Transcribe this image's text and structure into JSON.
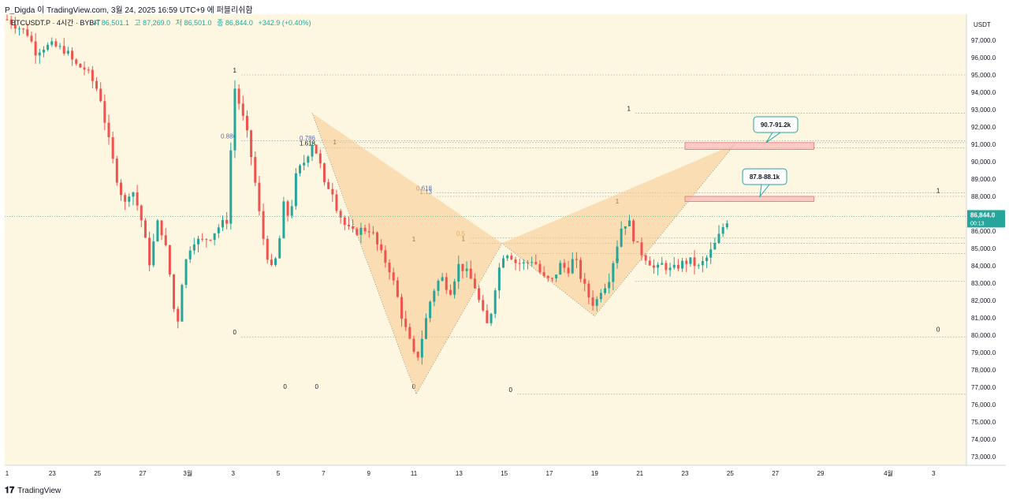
{
  "header": {
    "caption": "P_Digda 이 TradingView.com, 3월 24, 2025 16:59 UTC+9 에 퍼블리쉬함"
  },
  "footer": {
    "brand": "TradingView"
  },
  "colors": {
    "background": "#fdf7e1",
    "up": "#26a69a",
    "down": "#ef5350",
    "pattern_fill": "#f8c98d",
    "zone_fill": "#f7b8b8",
    "zone_border": "#e57373",
    "callout_border": "#26a69a",
    "price_badge": "#26a69a",
    "fib_label": "#5d6fa8",
    "fib_label_mid": "#d08a2c"
  },
  "chart_data": {
    "type": "candlestick",
    "symbol_line": {
      "symbol": "BTCUSDT.P · 4시간 · BYBIT",
      "o_label": "시",
      "o_value": "86,501.1",
      "h_label": "고",
      "h_value": "87,269.0",
      "l_label": "저",
      "l_value": "86,501.0",
      "c_label": "종",
      "c_value": "86,844.0",
      "change": "+342.9 (+0.40%)"
    },
    "currency": "USDT",
    "last_price": "86,844.0",
    "countdown": "00:13",
    "ylim": [
      72500,
      98500
    ],
    "y_ticks": [
      73000,
      74000,
      75000,
      76000,
      77000,
      78000,
      79000,
      80000,
      81000,
      82000,
      83000,
      84000,
      85000,
      86000,
      87000,
      88000,
      89000,
      90000,
      91000,
      92000,
      93000,
      94000,
      95000,
      96000,
      97000
    ],
    "y_tick_labels": [
      "73,000.0",
      "74,000.0",
      "75,000.0",
      "76,000.0",
      "77,000.0",
      "78,000.0",
      "79,000.0",
      "80,000.0",
      "81,000.0",
      "82,000.0",
      "83,000.0",
      "84,000.0",
      "85,000.0",
      "86,000.0",
      "87,000.0",
      "88,000.0",
      "89,000.0",
      "90,000.0",
      "91,000.0",
      "92,000.0",
      "93,000.0",
      "94,000.0",
      "95,000.0",
      "96,000.0",
      "97,000.0"
    ],
    "x_range_days": [
      0,
      42
    ],
    "x_ticks": [
      {
        "day": 0,
        "label": "1"
      },
      {
        "day": 2,
        "label": "23"
      },
      {
        "day": 4,
        "label": "25"
      },
      {
        "day": 6,
        "label": "27"
      },
      {
        "day": 8,
        "label": "3월"
      },
      {
        "day": 10,
        "label": "3"
      },
      {
        "day": 12,
        "label": "5"
      },
      {
        "day": 14,
        "label": "7"
      },
      {
        "day": 16,
        "label": "9"
      },
      {
        "day": 18,
        "label": "11"
      },
      {
        "day": 20,
        "label": "13"
      },
      {
        "day": 22,
        "label": "15"
      },
      {
        "day": 24,
        "label": "17"
      },
      {
        "day": 26,
        "label": "19"
      },
      {
        "day": 28,
        "label": "21"
      },
      {
        "day": 30,
        "label": "23"
      },
      {
        "day": 32,
        "label": "25"
      },
      {
        "day": 34,
        "label": "27"
      },
      {
        "day": 36,
        "label": "29"
      },
      {
        "day": 39,
        "label": "4월"
      },
      {
        "day": 41,
        "label": "3"
      }
    ],
    "series": [
      {
        "name": "price",
        "points": [
          [
            0.0,
            98200
          ],
          [
            1.0,
            97300
          ],
          [
            1.2,
            96300
          ],
          [
            1.6,
            96600
          ],
          [
            2.0,
            96700
          ],
          [
            2.6,
            96400
          ],
          [
            3.0,
            95600
          ],
          [
            3.5,
            95300
          ],
          [
            4.1,
            93900
          ],
          [
            4.4,
            91800
          ],
          [
            4.8,
            89300
          ],
          [
            5.2,
            87500
          ],
          [
            5.5,
            88600
          ],
          [
            5.9,
            86900
          ],
          [
            6.3,
            84200
          ],
          [
            6.7,
            86700
          ],
          [
            7.1,
            84600
          ],
          [
            7.5,
            80200
          ],
          [
            7.8,
            83800
          ],
          [
            8.2,
            85500
          ],
          [
            8.6,
            85400
          ],
          [
            9.0,
            85700
          ],
          [
            9.4,
            86300
          ],
          [
            9.8,
            86700
          ],
          [
            10.0,
            94600
          ],
          [
            10.3,
            93200
          ],
          [
            10.6,
            91700
          ],
          [
            10.9,
            89600
          ],
          [
            11.1,
            87500
          ],
          [
            11.4,
            85100
          ],
          [
            11.7,
            83800
          ],
          [
            12.0,
            84700
          ],
          [
            12.2,
            87600
          ],
          [
            12.5,
            86700
          ],
          [
            12.8,
            89300
          ],
          [
            13.2,
            90100
          ],
          [
            13.5,
            91100
          ],
          [
            13.7,
            90500
          ],
          [
            13.9,
            89600
          ],
          [
            14.1,
            88200
          ],
          [
            14.3,
            88800
          ],
          [
            14.6,
            87300
          ],
          [
            15.0,
            86200
          ],
          [
            15.3,
            85900
          ],
          [
            15.7,
            86100
          ],
          [
            16.1,
            86100
          ],
          [
            16.5,
            84800
          ],
          [
            16.9,
            83900
          ],
          [
            17.2,
            82600
          ],
          [
            17.5,
            80900
          ],
          [
            17.9,
            79300
          ],
          [
            18.1,
            78400
          ],
          [
            18.3,
            79500
          ],
          [
            18.5,
            80700
          ],
          [
            18.8,
            82400
          ],
          [
            19.2,
            83400
          ],
          [
            19.6,
            82500
          ],
          [
            20.0,
            84100
          ],
          [
            20.4,
            83500
          ],
          [
            20.7,
            82800
          ],
          [
            21.0,
            81400
          ],
          [
            21.3,
            80400
          ],
          [
            21.6,
            82800
          ],
          [
            21.9,
            84600
          ],
          [
            22.2,
            84800
          ],
          [
            22.5,
            84200
          ],
          [
            22.9,
            84100
          ],
          [
            23.3,
            84400
          ],
          [
            23.7,
            83300
          ],
          [
            24.1,
            83100
          ],
          [
            24.5,
            84100
          ],
          [
            24.8,
            83700
          ],
          [
            25.1,
            84500
          ],
          [
            25.4,
            83300
          ],
          [
            25.7,
            82300
          ],
          [
            26.0,
            81700
          ],
          [
            26.3,
            82700
          ],
          [
            26.6,
            83100
          ],
          [
            26.9,
            84700
          ],
          [
            27.2,
            86300
          ],
          [
            27.5,
            86600
          ],
          [
            27.8,
            85300
          ],
          [
            28.1,
            84700
          ],
          [
            28.4,
            84300
          ],
          [
            28.7,
            83700
          ],
          [
            29.0,
            84100
          ],
          [
            29.4,
            83700
          ],
          [
            29.8,
            84100
          ],
          [
            30.2,
            84300
          ],
          [
            30.6,
            83900
          ],
          [
            31.0,
            84500
          ],
          [
            31.4,
            85400
          ],
          [
            31.7,
            86300
          ],
          [
            32.0,
            86900
          ]
        ]
      }
    ],
    "fib_levels": [
      {
        "price": 95000,
        "label": "1"
      },
      {
        "price": 91100,
        "label": "0.786"
      },
      {
        "price": 88200,
        "label": "0.618"
      },
      {
        "price": 85600,
        "label": "0.5"
      },
      {
        "price": 76600,
        "label": "0"
      },
      {
        "price": 92800,
        "label": "1"
      },
      {
        "price": 91200,
        "label": "0.886"
      },
      {
        "price": 90800,
        "label": "1.618"
      },
      {
        "price": 88000,
        "label": "1.13"
      },
      {
        "price": 85300,
        "label": "1"
      },
      {
        "price": 84700,
        "label": ""
      },
      {
        "price": 83100,
        "label": ""
      },
      {
        "price": 79900,
        "label": "0"
      }
    ],
    "extra_labels": [
      {
        "text": "0",
        "x_day": 12.3,
        "price": 76900
      },
      {
        "text": "0",
        "x_day": 13.7,
        "price": 76900
      },
      {
        "text": "0",
        "x_day": 18.0,
        "price": 76900
      },
      {
        "text": "1",
        "x_day": 14.5,
        "price": 91000
      },
      {
        "text": "1",
        "x_day": 18.0,
        "price": 85400
      },
      {
        "text": "1",
        "x_day": 27.0,
        "price": 87600
      },
      {
        "text": "0",
        "x_day": 27.0,
        "price": 84200
      },
      {
        "text": "1",
        "x_day": 41.2,
        "price": 88200
      },
      {
        "text": "0",
        "x_day": 41.2,
        "price": 80200
      }
    ],
    "pattern": {
      "points": [
        [
          13.5,
          92800
        ],
        [
          18.1,
          76600
        ],
        [
          21.9,
          85300
        ],
        [
          26.0,
          81100
        ],
        [
          32.2,
          91000
        ]
      ]
    },
    "zones": [
      {
        "x_day_start": 30.0,
        "x_day_end": 35.7,
        "price_low": 90700,
        "price_high": 91100,
        "callout": "90.7-91.2k"
      },
      {
        "x_day_start": 30.0,
        "x_day_end": 35.7,
        "price_low": 87700,
        "price_high": 88000,
        "callout": "87.8-88.1k"
      }
    ]
  }
}
